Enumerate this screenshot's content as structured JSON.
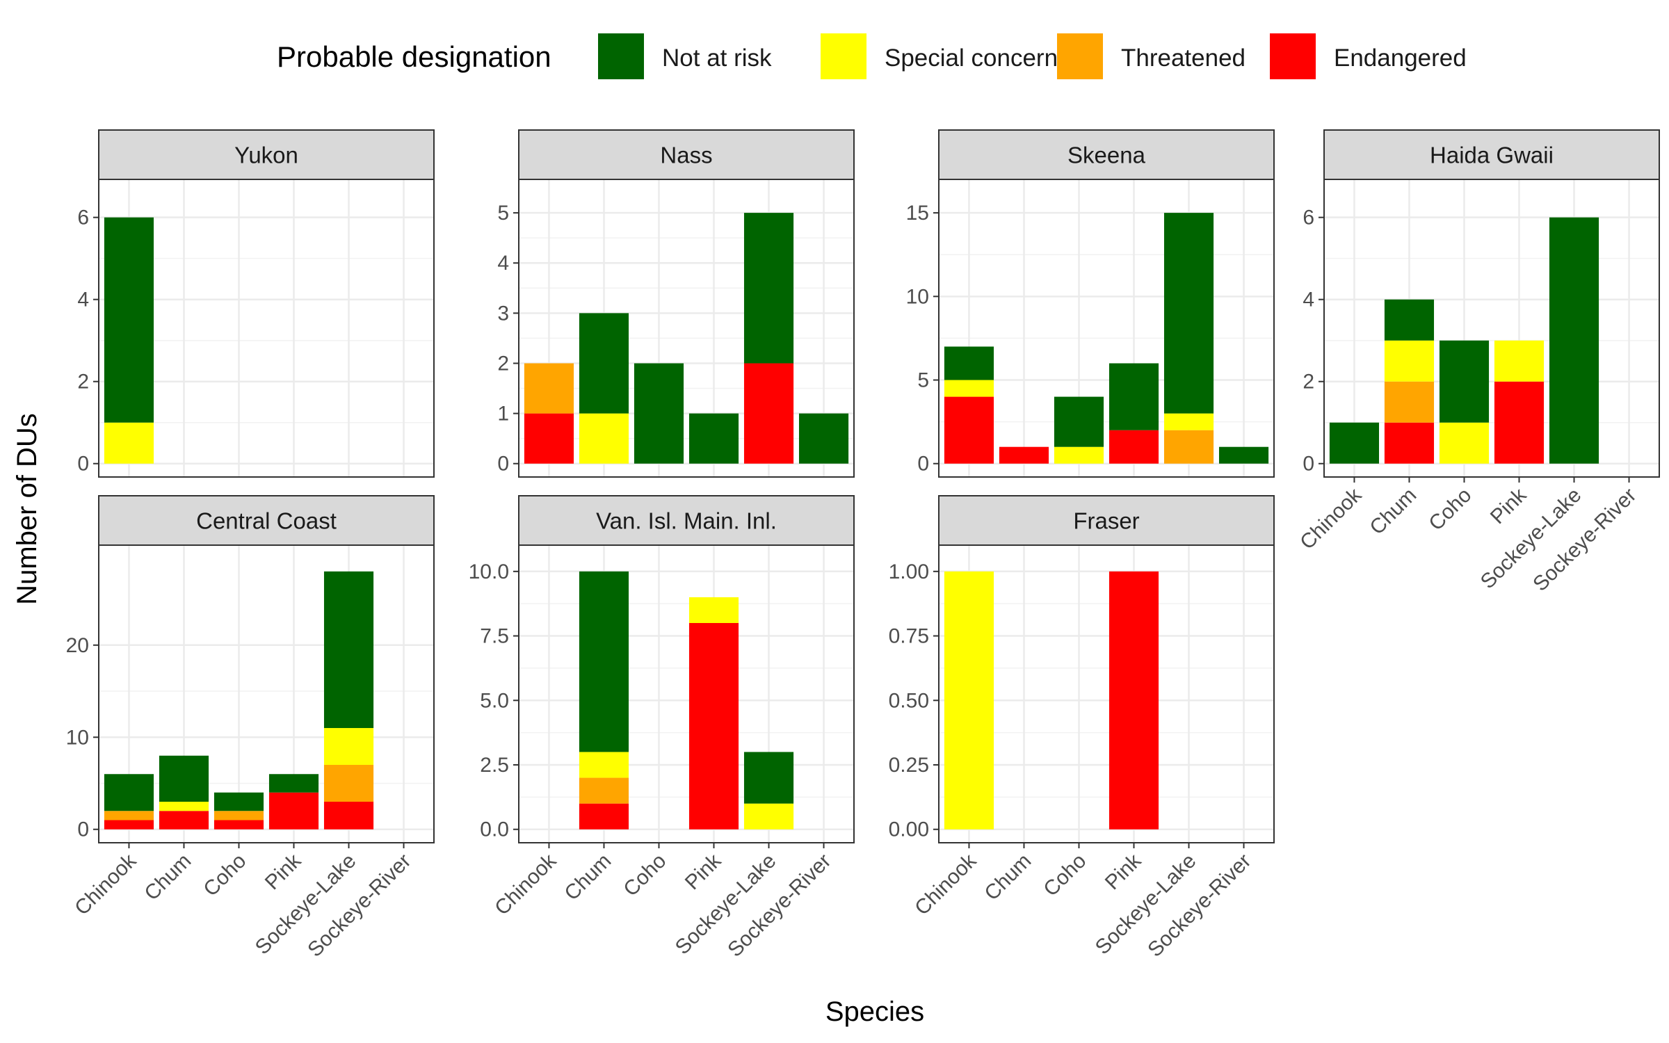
{
  "chart_data": {
    "type": "bar",
    "stacked": true,
    "xlabel": "Species",
    "ylabel": "Number of DUs",
    "legend": {
      "title": "Probable designation",
      "position": "top",
      "entries": [
        "Not at risk",
        "Special concern",
        "Threatened",
        "Endangered"
      ]
    },
    "colors": {
      "Not at risk": "#006400",
      "Special concern": "#ffff00",
      "Threatened": "#ffa500",
      "Endangered": "#ff0000"
    },
    "categories": [
      "Chinook",
      "Chum",
      "Coho",
      "Pink",
      "Sockeye-Lake",
      "Sockeye-River"
    ],
    "grid": true,
    "facets": [
      {
        "title": "Yukon",
        "ylim": [
          0,
          6.6
        ],
        "yticks": [
          "0",
          "2",
          "4",
          "6"
        ],
        "ytick_values": [
          0,
          2,
          4,
          6
        ],
        "values": {
          "Endangered": [
            0,
            0,
            0,
            0,
            0,
            0
          ],
          "Threatened": [
            0,
            0,
            0,
            0,
            0,
            0
          ],
          "Special concern": [
            1,
            0,
            0,
            0,
            0,
            0
          ],
          "Not at risk": [
            5,
            0,
            0,
            0,
            0,
            0
          ]
        }
      },
      {
        "title": "Nass",
        "ylim": [
          0,
          5.4
        ],
        "yticks": [
          "0",
          "1",
          "2",
          "3",
          "4",
          "5"
        ],
        "ytick_values": [
          0,
          1,
          2,
          3,
          4,
          5
        ],
        "values": {
          "Endangered": [
            1,
            0,
            0,
            0,
            2,
            0
          ],
          "Threatened": [
            1,
            0,
            0,
            0,
            0,
            0
          ],
          "Special concern": [
            0,
            1,
            0,
            0,
            0,
            0
          ],
          "Not at risk": [
            0,
            2,
            2,
            1,
            3,
            1
          ]
        }
      },
      {
        "title": "Skeena",
        "ylim": [
          0,
          16.2
        ],
        "yticks": [
          "0",
          "5",
          "10",
          "15"
        ],
        "ytick_values": [
          0,
          5,
          10,
          15
        ],
        "values": {
          "Endangered": [
            4,
            1,
            0,
            2,
            0,
            0
          ],
          "Threatened": [
            0,
            0,
            0,
            0,
            2,
            0
          ],
          "Special concern": [
            1,
            0,
            1,
            0,
            1,
            0
          ],
          "Not at risk": [
            2,
            0,
            3,
            4,
            12,
            1
          ]
        }
      },
      {
        "title": "Haida Gwaii",
        "ylim": [
          0,
          6.6
        ],
        "yticks": [
          "0",
          "2",
          "4",
          "6"
        ],
        "ytick_values": [
          0,
          2,
          4,
          6
        ],
        "values": {
          "Endangered": [
            0,
            1,
            0,
            2,
            0,
            0
          ],
          "Threatened": [
            0,
            1,
            0,
            0,
            0,
            0
          ],
          "Special concern": [
            0,
            1,
            1,
            1,
            0,
            0
          ],
          "Not at risk": [
            1,
            1,
            2,
            0,
            6,
            0
          ]
        }
      },
      {
        "title": "Central Coast",
        "ylim": [
          0,
          29.4
        ],
        "yticks": [
          "0",
          "10",
          "20"
        ],
        "ytick_values": [
          0,
          10,
          20
        ],
        "values": {
          "Endangered": [
            1,
            2,
            1,
            4,
            3,
            0
          ],
          "Threatened": [
            1,
            0,
            1,
            0,
            4,
            0
          ],
          "Special concern": [
            0,
            1,
            0,
            0,
            4,
            0
          ],
          "Not at risk": [
            4,
            5,
            2,
            2,
            17,
            0
          ]
        }
      },
      {
        "title": "Van. Isl. Main. Inl.",
        "ylim": [
          0,
          10.5
        ],
        "yticks": [
          "0.0",
          "2.5",
          "5.0",
          "7.5",
          "10.0"
        ],
        "ytick_values": [
          0,
          2.5,
          5,
          7.5,
          10
        ],
        "values": {
          "Endangered": [
            0,
            1,
            0,
            8,
            0,
            0
          ],
          "Threatened": [
            0,
            1,
            0,
            0,
            0,
            0
          ],
          "Special concern": [
            0,
            1,
            0,
            1,
            1,
            0
          ],
          "Not at risk": [
            0,
            7,
            0,
            0,
            2,
            0
          ]
        }
      },
      {
        "title": "Fraser",
        "ylim": [
          0,
          1.05
        ],
        "yticks": [
          "0.00",
          "0.25",
          "0.50",
          "0.75",
          "1.00"
        ],
        "ytick_values": [
          0,
          0.25,
          0.5,
          0.75,
          1
        ],
        "values": {
          "Endangered": [
            0,
            0,
            0,
            1,
            0,
            0
          ],
          "Threatened": [
            0,
            0,
            0,
            0,
            0,
            0
          ],
          "Special concern": [
            1,
            0,
            0,
            0,
            0,
            0
          ],
          "Not at risk": [
            0,
            0,
            0,
            0,
            0,
            0
          ]
        }
      }
    ]
  }
}
